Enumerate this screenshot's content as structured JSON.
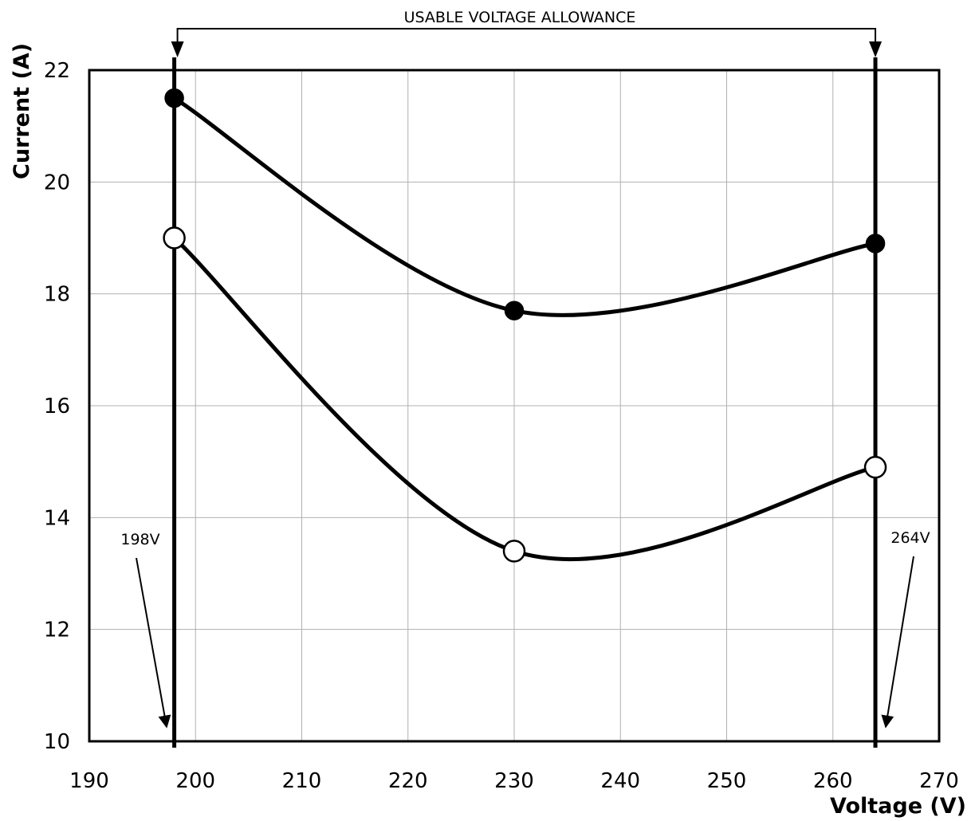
{
  "chart_data": {
    "type": "line",
    "title": "",
    "xlabel": "Voltage (V)",
    "ylabel": "Current (A)",
    "xlim": [
      190,
      270
    ],
    "ylim": [
      10,
      22
    ],
    "xticks": [
      "190",
      "200",
      "210",
      "220",
      "230",
      "240",
      "250",
      "260",
      "270"
    ],
    "yticks": [
      "10",
      "12",
      "14",
      "16",
      "18",
      "20",
      "22"
    ],
    "grid": true,
    "series": [
      {
        "marker": "filled-circle",
        "color": "#000000",
        "x": [
          198,
          230,
          264
        ],
        "y": [
          21.5,
          17.7,
          18.9
        ]
      },
      {
        "marker": "open-circle",
        "color": "#000000",
        "x": [
          198,
          230,
          264
        ],
        "y": [
          19.0,
          13.4,
          14.9
        ]
      }
    ],
    "annotations": {
      "allowance_label": "USABLE VOLTAGE ALLOWANCE",
      "low_limit_label": "198V",
      "high_limit_label": "264V",
      "low_limit_value": 198,
      "high_limit_value": 264
    }
  }
}
